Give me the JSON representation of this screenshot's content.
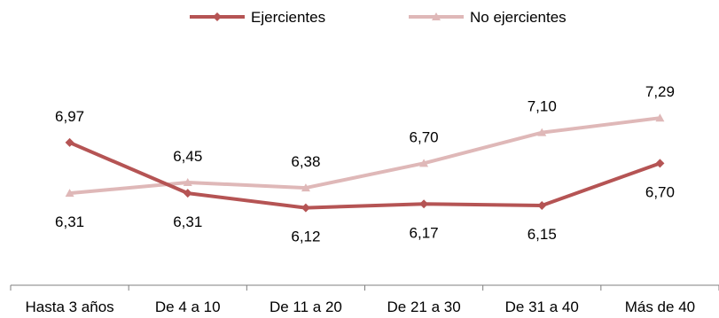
{
  "chart_data": {
    "type": "line",
    "categories": [
      "Hasta 3 años",
      "De 4 a 10",
      "De 11 a 20",
      "De 21 a 30",
      "De 31 a 40",
      "Más de 40"
    ],
    "series": [
      {
        "name": "Ejercientes",
        "values": [
          6.97,
          6.31,
          6.12,
          6.17,
          6.15,
          6.7
        ],
        "labels": [
          "6,97",
          "6,31",
          "6,12",
          "6,17",
          "6,15",
          "6,70"
        ],
        "color": "#b55454",
        "marker": "diamond"
      },
      {
        "name": "No ejercientes",
        "values": [
          6.31,
          6.45,
          6.38,
          6.7,
          7.1,
          7.29
        ],
        "labels": [
          "6,31",
          "6,45",
          "6,38",
          "6,70",
          "7,10",
          "7,29"
        ],
        "color": "#dfb8b8",
        "marker": "triangle"
      }
    ],
    "legend_position": "top",
    "grid": false
  }
}
